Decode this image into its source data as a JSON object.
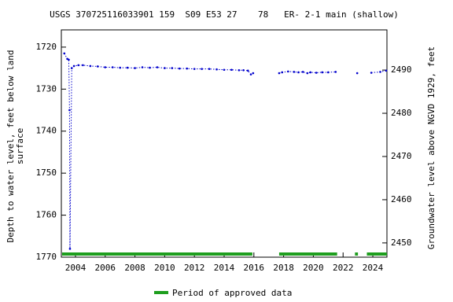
{
  "chart_data": {
    "type": "line",
    "title": "USGS 370725116033901 159  S09 E53 27    78   ER- 2-1 main (shallow)",
    "ylabel": [
      "Depth to water level, feet below land",
      "surface"
    ],
    "y2label": "Groundwater level above NGVD 1929, feet",
    "xlim": [
      2003.05,
      2024.95
    ],
    "xticks": [
      2004,
      2006,
      2008,
      2010,
      2012,
      2014,
      2016,
      2018,
      2020,
      2022,
      2024
    ],
    "ylim": [
      1770,
      1715.9
    ],
    "yticks": [
      1720,
      1730,
      1740,
      1750,
      1760,
      1770
    ],
    "y2lim": [
      2446.7,
      2499.3
    ],
    "y2ticks": [
      2450,
      2460,
      2470,
      2480,
      2490
    ],
    "series": [
      {
        "name": "Depth to water level",
        "color": "#0000cc",
        "x": [
          2003.25,
          2003.45,
          2003.55,
          2003.6,
          2003.63,
          2003.75,
          2003.9,
          2004.2,
          2004.5,
          2005,
          2005.5,
          2006,
          2006.5,
          2007,
          2007.5,
          2008,
          2008.5,
          2009,
          2009.5,
          2010,
          2010.5,
          2011,
          2011.5,
          2012,
          2012.5,
          2013,
          2013.5,
          2014,
          2014.5,
          2015,
          2015.3,
          2015.6,
          2015.8,
          2015.95,
          2016.8,
          2017.7,
          2017.9,
          2018.3,
          2018.7,
          2019,
          2019.3,
          2019.6,
          2019.8,
          2020.2,
          2020.6,
          2021,
          2021.5,
          2022.2,
          2022.95,
          2023.5,
          2023.9,
          2024.5,
          2024.9
        ],
        "values": [
          1721.5,
          1722.8,
          1723,
          1735,
          1768,
          1725,
          1724.5,
          1724.3,
          1724.3,
          1724.5,
          1724.6,
          1724.8,
          1724.8,
          1724.9,
          1724.9,
          1725,
          1724.8,
          1724.9,
          1724.8,
          1725,
          1725,
          1725.1,
          1725.1,
          1725.2,
          1725.2,
          1725.2,
          1725.3,
          1725.4,
          1725.4,
          1725.5,
          1725.5,
          1725.6,
          1726.5,
          1726.2,
          null,
          1726.2,
          1726,
          1725.8,
          1725.9,
          1726,
          1725.9,
          1726.2,
          1726,
          1726.1,
          1726,
          1726,
          1725.9,
          null,
          1726.2,
          null,
          1726.1,
          1725.9,
          1725.6
        ]
      }
    ],
    "approved_periods": {
      "name": "Period of approved data",
      "color": "#1e9e1e",
      "ranges": [
        [
          2003.1,
          2015.9
        ],
        [
          2017.7,
          2021.6
        ],
        [
          2022.8,
          2023.0
        ],
        [
          2023.6,
          2024.95
        ]
      ]
    }
  }
}
